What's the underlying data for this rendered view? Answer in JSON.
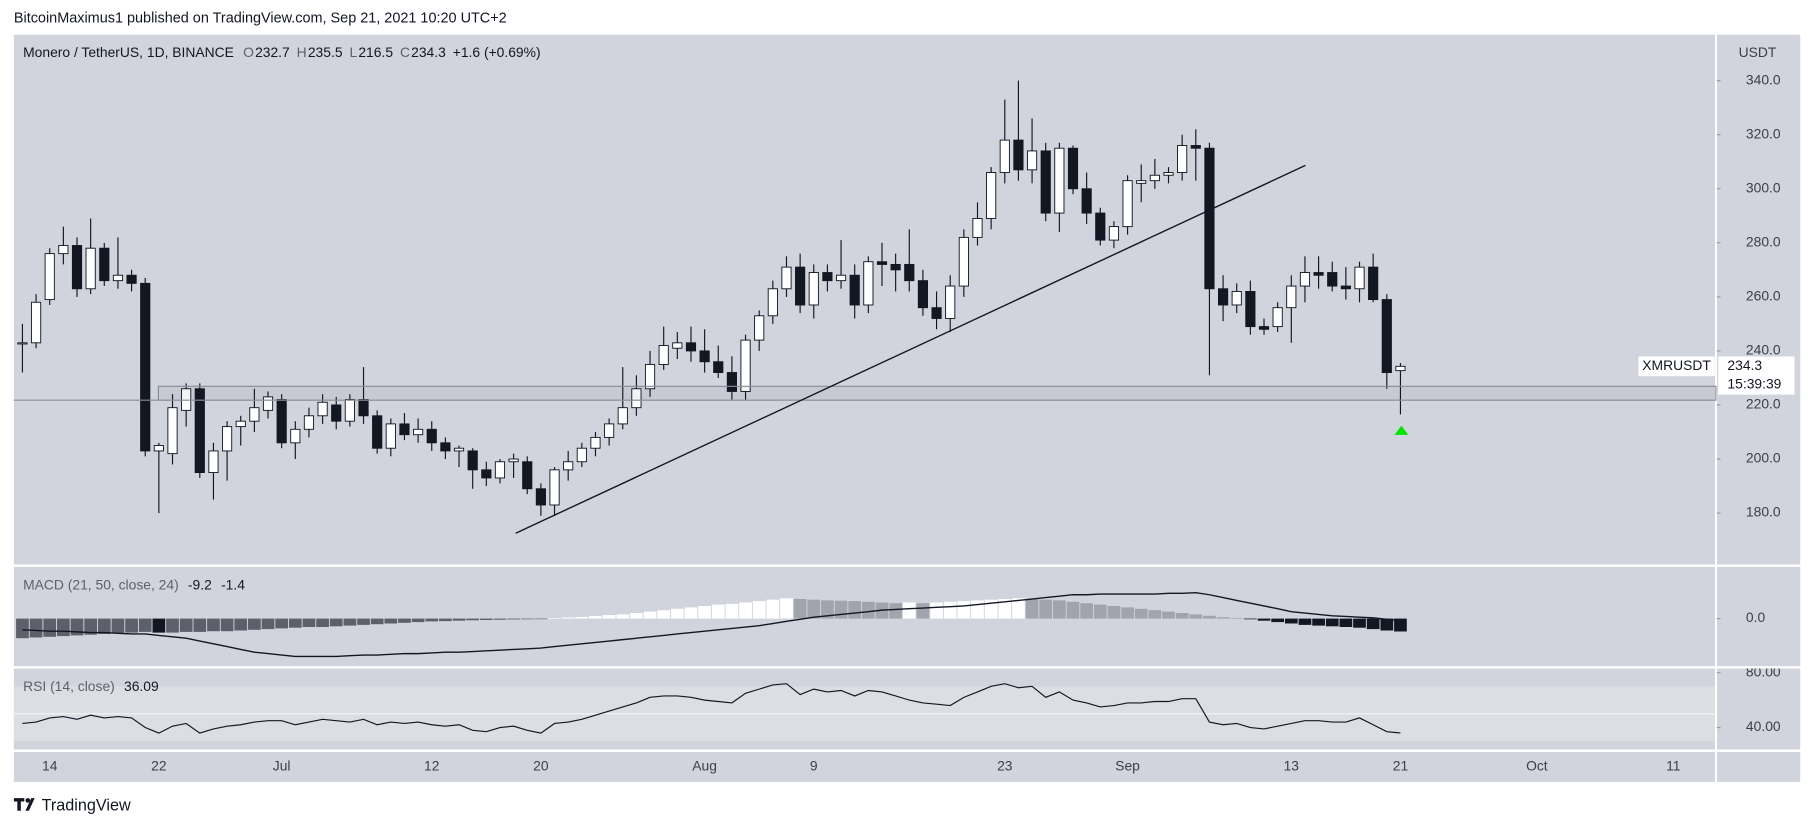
{
  "header": {
    "text": "BitcoinMaximus1 published on TradingView.com, Sep 21, 2021 10:20 UTC+2"
  },
  "footer": {
    "brand": "TradingView"
  },
  "chart_data": {
    "type": "candlestick",
    "title": "Monero / TetherUS, 1D, BINANCE",
    "ohlc_letters": [
      "O",
      "H",
      "L",
      "C"
    ],
    "change_label": "+1.6 (+0.69%)",
    "symbol": "XMRUSDT",
    "currency": "USDT",
    "countdown": "15:39:39",
    "categories": [
      null,
      null,
      "14",
      null,
      null,
      null,
      null,
      null,
      null,
      null,
      "22",
      null,
      null,
      null,
      null,
      null,
      null,
      null,
      null,
      "Jul",
      null,
      null,
      null,
      null,
      null,
      null,
      null,
      null,
      null,
      null,
      "12",
      null,
      null,
      null,
      null,
      null,
      null,
      null,
      "20",
      null,
      null,
      null,
      null,
      null,
      null,
      null,
      null,
      null,
      null,
      null,
      "Aug",
      null,
      null,
      null,
      null,
      null,
      null,
      null,
      "9",
      null,
      null,
      null,
      null,
      null,
      null,
      null,
      null,
      null,
      null,
      null,
      null,
      null,
      "23",
      null,
      null,
      null,
      null,
      null,
      null,
      null,
      null,
      "Sep",
      null,
      null,
      null,
      null,
      null,
      null,
      null,
      null,
      null,
      null,
      null,
      "13",
      null,
      null,
      null,
      null,
      null,
      null,
      null,
      "21",
      null,
      null,
      null,
      null,
      null,
      null,
      null,
      null,
      null,
      "Oct",
      null,
      null,
      null,
      null,
      null,
      null,
      null,
      null,
      null,
      "11",
      null,
      null,
      null
    ],
    "open": [
      243,
      243,
      259,
      276,
      279,
      263,
      278,
      266,
      268,
      265,
      203,
      202,
      218,
      226,
      195,
      203,
      212,
      214,
      218,
      222,
      206,
      211,
      216,
      220,
      214,
      222,
      216,
      204,
      213,
      209,
      211,
      206,
      203,
      203,
      196,
      193,
      199,
      199,
      189,
      183,
      196,
      199,
      204,
      208,
      213,
      219,
      226,
      235,
      241,
      243,
      240,
      236,
      232,
      225,
      244,
      253,
      263,
      271,
      257,
      269,
      266,
      268,
      257,
      273,
      272,
      272,
      266,
      256,
      252,
      264,
      282,
      289,
      306,
      318,
      307,
      314,
      291,
      315,
      300,
      291,
      281,
      286,
      302,
      303,
      305,
      306,
      316,
      315,
      263,
      257,
      262,
      249,
      249,
      256,
      264,
      269,
      269,
      264,
      263,
      271,
      259,
      232.7,
      null,
      null,
      null,
      null,
      null,
      null,
      null,
      null,
      null,
      null,
      null,
      null,
      null,
      null,
      null,
      null,
      null,
      null,
      null,
      null,
      null,
      null,
      null
    ],
    "high": [
      250,
      261,
      278,
      286,
      282,
      289,
      280,
      282,
      270,
      267,
      206,
      224,
      228,
      228,
      206,
      214,
      216,
      226,
      225,
      224,
      214,
      219,
      224,
      223,
      224,
      234,
      218,
      215,
      217,
      215,
      214,
      208,
      205,
      204,
      199,
      200,
      202,
      201,
      191,
      197,
      203,
      206,
      210,
      215,
      234,
      231,
      240,
      249,
      247,
      249,
      248,
      242,
      238,
      246,
      255,
      266,
      275,
      276,
      272,
      272,
      281,
      272,
      275,
      280,
      276,
      285,
      270,
      262,
      268,
      285,
      295,
      308,
      333,
      340,
      326,
      317,
      317,
      316,
      306,
      293,
      288,
      305,
      309,
      311,
      308,
      320,
      322,
      317,
      268,
      265,
      266,
      252,
      258,
      268,
      275,
      275,
      273,
      271,
      273,
      276,
      261,
      235.5,
      null,
      null,
      null,
      null,
      null,
      null,
      null,
      null,
      null,
      null,
      null,
      null,
      null,
      null,
      null,
      null,
      null,
      null,
      null,
      null,
      null,
      null,
      null
    ],
    "low": [
      232,
      241,
      257,
      272,
      260,
      261,
      264,
      263,
      262,
      201,
      180,
      198,
      212,
      193,
      185,
      192,
      205,
      210,
      215,
      204,
      200,
      208,
      213,
      211,
      212,
      213,
      202,
      201,
      207,
      206,
      203,
      200,
      197,
      189,
      190,
      191,
      193,
      187,
      179,
      179,
      192,
      197,
      201,
      205,
      211,
      216,
      223,
      233,
      237,
      236,
      232,
      230,
      222,
      222,
      240,
      250,
      260,
      254,
      252,
      262,
      263,
      252,
      254,
      264,
      262,
      262,
      253,
      248,
      247,
      260,
      279,
      285,
      302,
      303,
      302,
      288,
      284,
      298,
      287,
      279,
      278,
      283,
      295,
      300,
      302,
      303,
      303,
      231,
      251,
      254,
      246,
      246,
      247,
      243,
      258,
      263,
      262,
      259,
      258,
      258,
      226,
      216.5,
      null,
      null,
      null,
      null,
      null,
      null,
      null,
      null,
      null,
      null,
      null,
      null,
      null,
      null,
      null,
      null,
      null,
      null,
      null,
      null,
      null,
      null,
      null
    ],
    "close": [
      243,
      258,
      276,
      279,
      263,
      278,
      266,
      268,
      265,
      203,
      205,
      219,
      226,
      195,
      203,
      212,
      214,
      219,
      223,
      206,
      211,
      216,
      221,
      214,
      222,
      216,
      204,
      213,
      209,
      211,
      206,
      203,
      204,
      196,
      193,
      199,
      200,
      189,
      183,
      196,
      199,
      204,
      208,
      213,
      219,
      226,
      235,
      242,
      243,
      240,
      236,
      232,
      225,
      244,
      253,
      263,
      271,
      257,
      269,
      266,
      268,
      257,
      273,
      272,
      270,
      266,
      256,
      252,
      264,
      282,
      289,
      306,
      318,
      307,
      314,
      291,
      315,
      300,
      291,
      281,
      286,
      303,
      303,
      305,
      306,
      316,
      315,
      263,
      257,
      262,
      249,
      248,
      256,
      264,
      269,
      268,
      264,
      263,
      271,
      259,
      232,
      234.3,
      null,
      null,
      null,
      null,
      null,
      null,
      null,
      null,
      null,
      null,
      null,
      null,
      null,
      null,
      null,
      null,
      null,
      null,
      null,
      null,
      null,
      null,
      null
    ],
    "ylim": [
      161,
      357
    ],
    "yticks": [
      {
        "value": 180,
        "label": "180.0"
      },
      {
        "value": 200,
        "label": "200.0"
      },
      {
        "value": 220,
        "label": "220.0"
      },
      {
        "value": 240,
        "label": "240.0"
      },
      {
        "value": 260,
        "label": "260.0"
      },
      {
        "value": 280,
        "label": "280.0"
      },
      {
        "value": 300,
        "label": "300.0"
      },
      {
        "value": 320,
        "label": "320.0"
      },
      {
        "value": 340,
        "label": "340.0"
      }
    ],
    "colors": {
      "up": "#ffffff",
      "down": "#131722",
      "wick": "#131722",
      "background": "#d1d4dc"
    },
    "indicators": [
      {
        "type": "macd",
        "title": "MACD (21, 50, close, 24)",
        "histogram": [
          -14,
          -13.5,
          -13,
          -12.5,
          -12,
          -11.5,
          -11,
          -10.5,
          -10,
          -9.5,
          -10,
          -10,
          -9.5,
          -9.5,
          -9,
          -9,
          -8.5,
          -8,
          -7.5,
          -7,
          -6.5,
          -6,
          -6,
          -5.5,
          -5,
          -4.5,
          -4,
          -3.5,
          -3,
          -2.5,
          -2,
          -1.8,
          -1.5,
          -1.2,
          -1,
          -0.8,
          -0.6,
          -0.5,
          -0.3,
          0.3,
          0.8,
          1.2,
          1.8,
          2.5,
          3,
          4,
          5,
          6,
          7,
          8,
          9,
          10,
          10.5,
          11.5,
          12.5,
          13.5,
          14.5,
          14,
          13.5,
          13,
          12.8,
          12.5,
          12,
          11.5,
          11,
          11.5,
          11,
          11.5,
          12,
          12.5,
          13,
          13.5,
          14,
          14.5,
          14,
          13.5,
          13,
          12,
          11,
          10,
          9,
          8,
          7,
          6,
          5,
          4,
          3,
          2,
          1,
          0.5,
          -0.5,
          -1.5,
          -2.5,
          -3.5,
          -4.5,
          -5,
          -5.5,
          -6,
          -6.5,
          -7.5,
          -8.5,
          -9.2,
          null,
          null,
          null,
          null,
          null,
          null,
          null,
          null,
          null,
          null,
          null,
          null,
          null,
          null,
          null,
          null,
          null,
          null,
          null,
          null,
          null,
          null,
          null
        ],
        "macd": [
          -8,
          -8.5,
          -9,
          -9,
          -9.5,
          -10,
          -10,
          -10.5,
          -11,
          -11,
          -12,
          -13,
          -14,
          -16,
          -18,
          -20,
          -22,
          -24,
          -25,
          -26,
          -27,
          -27,
          -27,
          -27,
          -26.5,
          -26,
          -26,
          -25.5,
          -25,
          -25,
          -24.5,
          -24,
          -24,
          -23.5,
          -23,
          -22.5,
          -22,
          -21.5,
          -21,
          -20,
          -19,
          -18,
          -17,
          -16,
          -15,
          -14,
          -13,
          -12,
          -11,
          -10,
          -9,
          -8,
          -7,
          -6,
          -5,
          -3.5,
          -2,
          -0.5,
          1,
          2,
          3,
          4,
          5,
          6,
          6.5,
          7,
          7.5,
          8,
          8.5,
          9,
          10,
          11,
          12,
          13,
          14,
          15,
          16,
          17,
          17,
          17.5,
          17.5,
          17.5,
          17.5,
          17.5,
          18,
          18,
          18.5,
          17,
          15,
          13,
          11,
          9,
          7,
          5,
          4,
          3,
          2,
          1.5,
          1,
          0.5,
          -0.5,
          -1.4,
          null,
          null,
          null,
          null,
          null,
          null,
          null,
          null,
          null,
          null,
          null,
          null,
          null,
          null,
          null,
          null,
          null,
          null,
          null,
          null,
          null,
          null,
          null
        ],
        "colors": {
          "rise_above": "#ffffff",
          "fall_above": "#a1a4ad",
          "rise_below": "#5d606b",
          "fall_below": "#131722",
          "line": "#131722"
        },
        "ylim": [
          -34,
          37
        ],
        "yticks": [
          {
            "value": 0,
            "label": "0.0"
          }
        ]
      },
      {
        "type": "rsi",
        "title": "RSI (14, close)",
        "values": [
          43,
          44,
          47,
          48,
          46,
          49,
          47,
          48,
          47,
          40,
          36,
          41,
          43,
          36,
          39,
          41,
          42,
          44,
          45,
          45,
          42,
          44,
          46,
          45,
          44,
          46,
          42,
          44,
          43,
          44,
          42,
          41,
          42,
          38,
          37,
          40,
          41,
          38,
          36,
          43,
          44,
          46,
          49,
          52,
          55,
          58,
          62,
          63,
          63,
          62,
          60,
          59,
          58,
          65,
          68,
          71,
          72,
          64,
          68,
          66,
          67,
          63,
          67,
          66,
          63,
          60,
          58,
          57,
          56,
          62,
          66,
          70,
          72,
          69,
          70,
          62,
          66,
          60,
          58,
          55,
          56,
          58,
          58,
          59,
          59,
          61,
          61,
          44,
          42,
          43,
          40,
          39,
          41,
          43,
          45,
          45,
          44,
          44,
          47,
          42,
          37,
          36.09,
          null,
          null,
          null,
          null,
          null,
          null,
          null,
          null,
          null,
          null,
          null,
          null,
          null,
          null,
          null,
          null,
          null,
          null,
          null,
          null,
          null,
          null,
          null
        ],
        "band": [
          30,
          70
        ],
        "midline": 50,
        "colors": {
          "line": "#131722",
          "band": "#dcdee4",
          "midline": "#f4f5f7"
        },
        "ylim": [
          24,
          83
        ],
        "yticks": [
          {
            "value": 80,
            "label": "80.00"
          },
          {
            "value": 40,
            "label": "40.00"
          }
        ]
      }
    ]
  }
}
